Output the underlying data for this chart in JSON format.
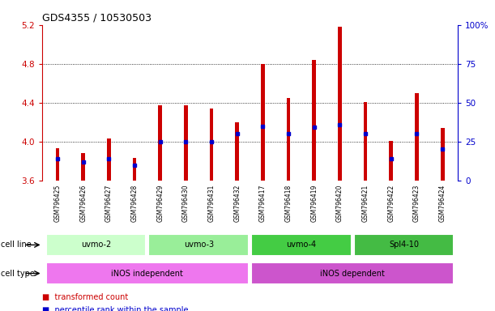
{
  "title": "GDS4355 / 10530503",
  "samples": [
    "GSM796425",
    "GSM796426",
    "GSM796427",
    "GSM796428",
    "GSM796429",
    "GSM796430",
    "GSM796431",
    "GSM796432",
    "GSM796417",
    "GSM796418",
    "GSM796419",
    "GSM796420",
    "GSM796421",
    "GSM796422",
    "GSM796423",
    "GSM796424"
  ],
  "transformed_counts": [
    3.93,
    3.88,
    4.03,
    3.83,
    4.37,
    4.37,
    4.34,
    4.2,
    4.8,
    4.45,
    4.84,
    5.18,
    4.41,
    4.01,
    4.5,
    4.14
  ],
  "percentile_ranks": [
    14,
    12,
    14,
    10,
    25,
    25,
    25,
    30,
    35,
    30,
    34,
    36,
    30,
    14,
    30,
    20
  ],
  "bar_color": "#cc0000",
  "blue_color": "#0000cc",
  "base_value": 3.6,
  "ylim_left": [
    3.6,
    5.2
  ],
  "ylim_right": [
    0,
    100
  ],
  "yticks_left": [
    3.6,
    4.0,
    4.4,
    4.8,
    5.2
  ],
  "yticks_right": [
    0,
    25,
    50,
    75,
    100
  ],
  "grid_values": [
    4.0,
    4.4,
    4.8
  ],
  "cell_lines": [
    {
      "label": "uvmo-2",
      "start": 0,
      "end": 3,
      "color": "#ccffcc"
    },
    {
      "label": "uvmo-3",
      "start": 4,
      "end": 7,
      "color": "#99ee99"
    },
    {
      "label": "uvmo-4",
      "start": 8,
      "end": 11,
      "color": "#44cc44"
    },
    {
      "label": "Spl4-10",
      "start": 12,
      "end": 15,
      "color": "#44bb44"
    }
  ],
  "cell_types": [
    {
      "label": "iNOS independent",
      "start": 0,
      "end": 7,
      "color": "#ee77ee"
    },
    {
      "label": "iNOS dependent",
      "start": 8,
      "end": 15,
      "color": "#cc55cc"
    }
  ],
  "bar_width": 0.15,
  "background_color": "#ffffff",
  "left_tick_color": "#cc0000",
  "right_tick_color": "#0000cc",
  "label_fontsize": 7,
  "tick_fontsize": 7.5,
  "title_fontsize": 9
}
